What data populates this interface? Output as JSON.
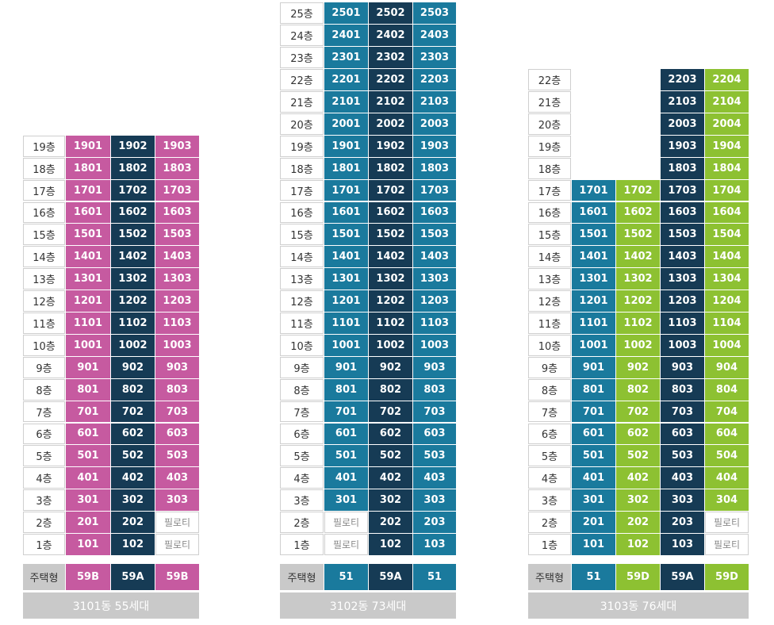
{
  "colors": {
    "pink": "#c65aa0",
    "navy": "#163b55",
    "teal": "#1a7a9d",
    "green": "#8dc132",
    "gray": "#c9c9c9"
  },
  "type_label": "주택형",
  "buildings": [
    {
      "id": "b3101",
      "footer": "3101동  55세대",
      "types": [
        "59B",
        "59A",
        "59B"
      ],
      "colors": [
        "pink",
        "navy",
        "pink"
      ],
      "floors": [
        {
          "label": "19층",
          "units": [
            "1901",
            "1902",
            "1903"
          ]
        },
        {
          "label": "18층",
          "units": [
            "1801",
            "1802",
            "1803"
          ]
        },
        {
          "label": "17층",
          "units": [
            "1701",
            "1702",
            "1703"
          ]
        },
        {
          "label": "16층",
          "units": [
            "1601",
            "1602",
            "1603"
          ]
        },
        {
          "label": "15층",
          "units": [
            "1501",
            "1502",
            "1503"
          ]
        },
        {
          "label": "14층",
          "units": [
            "1401",
            "1402",
            "1403"
          ]
        },
        {
          "label": "13층",
          "units": [
            "1301",
            "1302",
            "1303"
          ]
        },
        {
          "label": "12층",
          "units": [
            "1201",
            "1202",
            "1203"
          ]
        },
        {
          "label": "11층",
          "units": [
            "1101",
            "1102",
            "1103"
          ]
        },
        {
          "label": "10층",
          "units": [
            "1001",
            "1002",
            "1003"
          ]
        },
        {
          "label": "9층",
          "units": [
            "901",
            "902",
            "903"
          ]
        },
        {
          "label": "8층",
          "units": [
            "801",
            "802",
            "803"
          ]
        },
        {
          "label": "7층",
          "units": [
            "701",
            "702",
            "703"
          ]
        },
        {
          "label": "6층",
          "units": [
            "601",
            "602",
            "603"
          ]
        },
        {
          "label": "5층",
          "units": [
            "501",
            "502",
            "503"
          ]
        },
        {
          "label": "4층",
          "units": [
            "401",
            "402",
            "403"
          ]
        },
        {
          "label": "3층",
          "units": [
            "301",
            "302",
            "303"
          ]
        },
        {
          "label": "2층",
          "units": [
            "201",
            "202",
            "필로티"
          ]
        },
        {
          "label": "1층",
          "units": [
            "101",
            "102",
            "필로티"
          ]
        }
      ]
    },
    {
      "id": "b3102",
      "footer": "3102동  73세대",
      "types": [
        "51",
        "59A",
        "51"
      ],
      "colors": [
        "teal",
        "navy",
        "teal"
      ],
      "floors": [
        {
          "label": "25층",
          "units": [
            "2501",
            "2502",
            "2503"
          ]
        },
        {
          "label": "24층",
          "units": [
            "2401",
            "2402",
            "2403"
          ]
        },
        {
          "label": "23층",
          "units": [
            "2301",
            "2302",
            "2303"
          ]
        },
        {
          "label": "22층",
          "units": [
            "2201",
            "2202",
            "2203"
          ]
        },
        {
          "label": "21층",
          "units": [
            "2101",
            "2102",
            "2103"
          ]
        },
        {
          "label": "20층",
          "units": [
            "2001",
            "2002",
            "2003"
          ]
        },
        {
          "label": "19층",
          "units": [
            "1901",
            "1902",
            "1903"
          ]
        },
        {
          "label": "18층",
          "units": [
            "1801",
            "1802",
            "1803"
          ]
        },
        {
          "label": "17층",
          "units": [
            "1701",
            "1702",
            "1703"
          ]
        },
        {
          "label": "16층",
          "units": [
            "1601",
            "1602",
            "1603"
          ]
        },
        {
          "label": "15층",
          "units": [
            "1501",
            "1502",
            "1503"
          ]
        },
        {
          "label": "14층",
          "units": [
            "1401",
            "1402",
            "1403"
          ]
        },
        {
          "label": "13층",
          "units": [
            "1301",
            "1302",
            "1303"
          ]
        },
        {
          "label": "12층",
          "units": [
            "1201",
            "1202",
            "1203"
          ]
        },
        {
          "label": "11층",
          "units": [
            "1101",
            "1102",
            "1103"
          ]
        },
        {
          "label": "10층",
          "units": [
            "1001",
            "1002",
            "1003"
          ]
        },
        {
          "label": "9층",
          "units": [
            "901",
            "902",
            "903"
          ]
        },
        {
          "label": "8층",
          "units": [
            "801",
            "802",
            "803"
          ]
        },
        {
          "label": "7층",
          "units": [
            "701",
            "702",
            "703"
          ]
        },
        {
          "label": "6층",
          "units": [
            "601",
            "602",
            "603"
          ]
        },
        {
          "label": "5층",
          "units": [
            "501",
            "502",
            "503"
          ]
        },
        {
          "label": "4층",
          "units": [
            "401",
            "402",
            "403"
          ]
        },
        {
          "label": "3층",
          "units": [
            "301",
            "302",
            "303"
          ]
        },
        {
          "label": "2층",
          "units": [
            "필로티",
            "202",
            "203"
          ]
        },
        {
          "label": "1층",
          "units": [
            "필로티",
            "102",
            "103"
          ]
        }
      ]
    },
    {
      "id": "b3103",
      "footer": "3103동  76세대",
      "types": [
        "51",
        "59D",
        "59A",
        "59D"
      ],
      "colors": [
        "teal",
        "green",
        "navy",
        "green"
      ],
      "floors": [
        {
          "label": "22층",
          "units": [
            "",
            "",
            "2203",
            "2204"
          ]
        },
        {
          "label": "21층",
          "units": [
            "",
            "",
            "2103",
            "2104"
          ]
        },
        {
          "label": "20층",
          "units": [
            "",
            "",
            "2003",
            "2004"
          ]
        },
        {
          "label": "19층",
          "units": [
            "",
            "",
            "1903",
            "1904"
          ]
        },
        {
          "label": "18층",
          "units": [
            "",
            "",
            "1803",
            "1804"
          ]
        },
        {
          "label": "17층",
          "units": [
            "1701",
            "1702",
            "1703",
            "1704"
          ]
        },
        {
          "label": "16층",
          "units": [
            "1601",
            "1602",
            "1603",
            "1604"
          ]
        },
        {
          "label": "15층",
          "units": [
            "1501",
            "1502",
            "1503",
            "1504"
          ]
        },
        {
          "label": "14층",
          "units": [
            "1401",
            "1402",
            "1403",
            "1404"
          ]
        },
        {
          "label": "13층",
          "units": [
            "1301",
            "1302",
            "1303",
            "1304"
          ]
        },
        {
          "label": "12층",
          "units": [
            "1201",
            "1202",
            "1203",
            "1204"
          ]
        },
        {
          "label": "11층",
          "units": [
            "1101",
            "1102",
            "1103",
            "1104"
          ]
        },
        {
          "label": "10층",
          "units": [
            "1001",
            "1002",
            "1003",
            "1004"
          ]
        },
        {
          "label": "9층",
          "units": [
            "901",
            "902",
            "903",
            "904"
          ]
        },
        {
          "label": "8층",
          "units": [
            "801",
            "802",
            "803",
            "804"
          ]
        },
        {
          "label": "7층",
          "units": [
            "701",
            "702",
            "703",
            "704"
          ]
        },
        {
          "label": "6층",
          "units": [
            "601",
            "602",
            "603",
            "604"
          ]
        },
        {
          "label": "5층",
          "units": [
            "501",
            "502",
            "503",
            "504"
          ]
        },
        {
          "label": "4층",
          "units": [
            "401",
            "402",
            "403",
            "404"
          ]
        },
        {
          "label": "3층",
          "units": [
            "301",
            "302",
            "303",
            "304"
          ]
        },
        {
          "label": "2층",
          "units": [
            "201",
            "202",
            "203",
            "필로티"
          ]
        },
        {
          "label": "1층",
          "units": [
            "101",
            "102",
            "103",
            "필로티"
          ]
        }
      ]
    }
  ]
}
